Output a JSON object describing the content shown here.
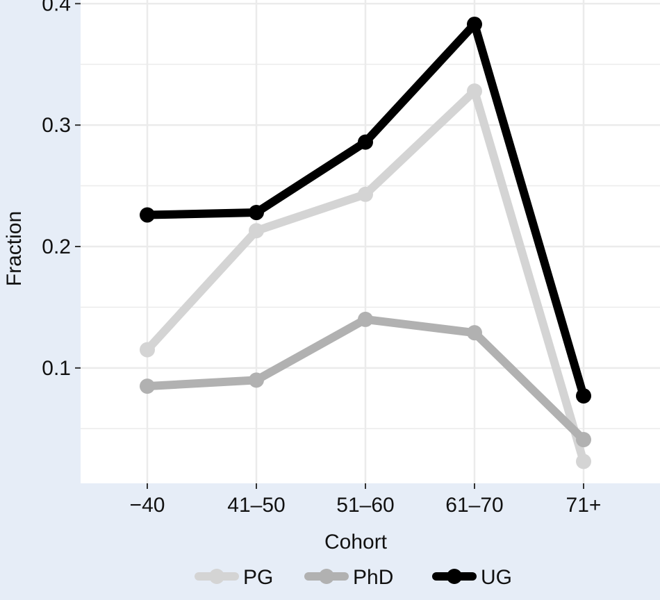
{
  "chart_data": {
    "type": "line",
    "categories": [
      "−40",
      "41–50",
      "51–60",
      "61–70",
      "71+"
    ],
    "series": [
      {
        "name": "PG",
        "color": "#d4d4d4",
        "values": [
          0.115,
          0.213,
          0.243,
          0.328,
          0.023
        ]
      },
      {
        "name": "PhD",
        "color": "#b1b1b1",
        "values": [
          0.085,
          0.09,
          0.14,
          0.129,
          0.041
        ]
      },
      {
        "name": "UG",
        "color": "#000000",
        "values": [
          0.226,
          0.228,
          0.286,
          0.383,
          0.077
        ]
      }
    ],
    "xlabel": "Cohort",
    "ylabel": "Fraction",
    "ylim": [
      0.005,
      0.403
    ],
    "yticks": [
      0.1,
      0.2,
      0.3,
      0.4
    ],
    "ytick_labels": [
      "0.1",
      "0.2",
      "0.3",
      "0.4"
    ],
    "grid": true,
    "legend_position": "bottom"
  }
}
